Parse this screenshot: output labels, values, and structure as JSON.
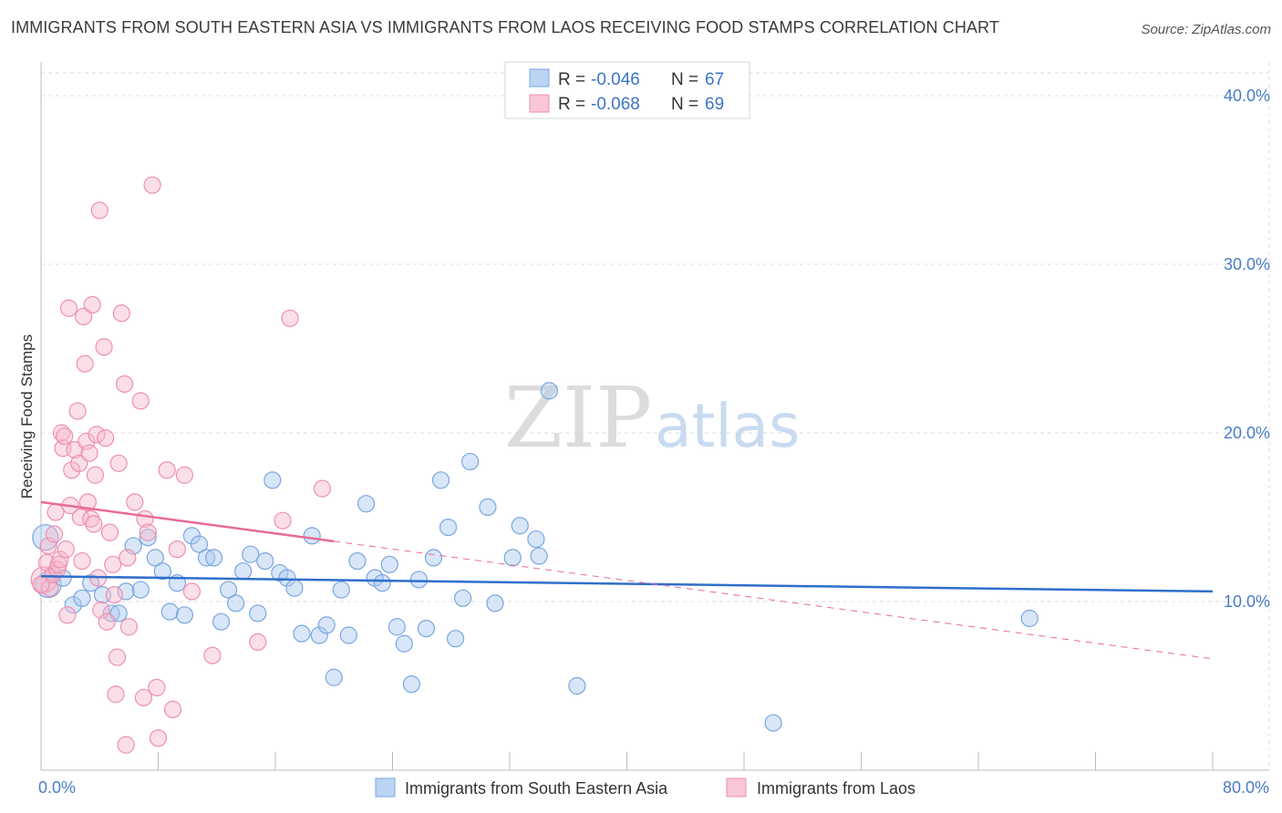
{
  "header": {
    "title": "IMMIGRANTS FROM SOUTH EASTERN ASIA VS IMMIGRANTS FROM LAOS RECEIVING FOOD STAMPS CORRELATION CHART",
    "source": "Source: ZipAtlas.com"
  },
  "watermark": {
    "zip": "ZIP",
    "atlas": "atlas"
  },
  "legend": {
    "series1": {
      "r_label": "R =",
      "r_value": "-0.046",
      "n_label": "N =",
      "n_value": "67"
    },
    "series2": {
      "r_label": "R =",
      "r_value": "-0.068",
      "n_label": "N =",
      "n_value": "69"
    }
  },
  "colors": {
    "blue_fill": "#a9c8f0",
    "blue_stroke": "#7aa6e0",
    "blue_line": "#2f6fcb",
    "pink_fill": "#f6b8cc",
    "pink_stroke": "#ee8fae",
    "pink_line": "#e86a98",
    "grid": "#dddddd",
    "axis_label": "#4a7cc7"
  },
  "chart_data": {
    "type": "scatter",
    "title": "IMMIGRANTS FROM SOUTH EASTERN ASIA VS IMMIGRANTS FROM LAOS RECEIVING FOOD STAMPS CORRELATION CHART",
    "xlabel": "",
    "ylabel": "Receiving Food Stamps",
    "xlim": [
      0,
      80
    ],
    "ylim": [
      0,
      42
    ],
    "x_tick_labels": [
      "0.0%",
      "80.0%"
    ],
    "y_ticks": [
      10,
      20,
      30,
      40
    ],
    "y_tick_labels": [
      "10.0%",
      "20.0%",
      "30.0%",
      "40.0%"
    ],
    "grid": true,
    "legend_position": "top-center",
    "series": [
      {
        "name": "Immigrants from South Eastern Asia",
        "color": "#a9c8f0",
        "r": -0.046,
        "n": 67,
        "trend": {
          "x0": 0,
          "y0": 11.5,
          "x1": 80,
          "y1": 10.6,
          "dashed_from": null
        },
        "points": [
          [
            0.3,
            13.8
          ],
          [
            0.5,
            11.0
          ],
          [
            0.8,
            11.6
          ],
          [
            1.5,
            11.4
          ],
          [
            2.2,
            9.8
          ],
          [
            2.8,
            10.2
          ],
          [
            3.4,
            11.1
          ],
          [
            4.2,
            10.4
          ],
          [
            4.8,
            9.3
          ],
          [
            5.3,
            9.3
          ],
          [
            5.8,
            10.6
          ],
          [
            6.3,
            13.3
          ],
          [
            6.8,
            10.7
          ],
          [
            7.3,
            13.8
          ],
          [
            7.8,
            12.6
          ],
          [
            8.3,
            11.8
          ],
          [
            8.8,
            9.4
          ],
          [
            9.3,
            11.1
          ],
          [
            9.8,
            9.2
          ],
          [
            10.3,
            13.9
          ],
          [
            10.8,
            13.4
          ],
          [
            11.3,
            12.6
          ],
          [
            11.8,
            12.6
          ],
          [
            12.3,
            8.8
          ],
          [
            12.8,
            10.7
          ],
          [
            13.3,
            9.9
          ],
          [
            13.8,
            11.8
          ],
          [
            14.3,
            12.8
          ],
          [
            14.8,
            9.3
          ],
          [
            15.3,
            12.4
          ],
          [
            15.8,
            17.2
          ],
          [
            16.3,
            11.7
          ],
          [
            16.8,
            11.4
          ],
          [
            17.3,
            10.8
          ],
          [
            17.8,
            8.1
          ],
          [
            18.5,
            13.9
          ],
          [
            19.0,
            8.0
          ],
          [
            19.5,
            8.6
          ],
          [
            20.0,
            5.5
          ],
          [
            20.5,
            10.7
          ],
          [
            21.0,
            8.0
          ],
          [
            21.6,
            12.4
          ],
          [
            22.2,
            15.8
          ],
          [
            22.8,
            11.4
          ],
          [
            23.3,
            11.1
          ],
          [
            23.8,
            12.2
          ],
          [
            24.3,
            8.5
          ],
          [
            24.8,
            7.5
          ],
          [
            25.3,
            5.1
          ],
          [
            25.8,
            11.3
          ],
          [
            26.3,
            8.4
          ],
          [
            26.8,
            12.6
          ],
          [
            27.3,
            17.2
          ],
          [
            27.8,
            14.4
          ],
          [
            28.3,
            7.8
          ],
          [
            28.8,
            10.2
          ],
          [
            29.3,
            18.3
          ],
          [
            30.5,
            15.6
          ],
          [
            31.0,
            9.9
          ],
          [
            32.2,
            12.6
          ],
          [
            32.7,
            14.5
          ],
          [
            33.8,
            13.7
          ],
          [
            34.0,
            12.7
          ],
          [
            34.7,
            22.5
          ],
          [
            36.6,
            5.0
          ],
          [
            50.0,
            2.8
          ],
          [
            67.5,
            9.0
          ]
        ]
      },
      {
        "name": "Immigrants from Laos",
        "color": "#f6b8cc",
        "r": -0.068,
        "n": 69,
        "trend": {
          "x0": 0,
          "y0": 15.9,
          "x1": 80,
          "y1": 6.6,
          "dashed_from": 20
        },
        "points": [
          [
            0.2,
            11.3
          ],
          [
            0.4,
            12.3
          ],
          [
            0.5,
            13.3
          ],
          [
            0.6,
            10.8
          ],
          [
            0.8,
            11.6
          ],
          [
            0.9,
            14.0
          ],
          [
            1.0,
            15.3
          ],
          [
            1.1,
            11.9
          ],
          [
            1.2,
            12.2
          ],
          [
            1.3,
            12.5
          ],
          [
            1.4,
            20.0
          ],
          [
            1.5,
            19.1
          ],
          [
            1.6,
            19.8
          ],
          [
            1.7,
            13.1
          ],
          [
            1.8,
            9.2
          ],
          [
            1.9,
            27.4
          ],
          [
            2.0,
            15.7
          ],
          [
            2.1,
            17.8
          ],
          [
            2.3,
            19.0
          ],
          [
            2.5,
            21.3
          ],
          [
            2.6,
            18.2
          ],
          [
            2.7,
            15.0
          ],
          [
            2.8,
            12.4
          ],
          [
            2.9,
            26.9
          ],
          [
            3.0,
            24.1
          ],
          [
            3.1,
            19.5
          ],
          [
            3.2,
            15.9
          ],
          [
            3.3,
            18.8
          ],
          [
            3.4,
            14.9
          ],
          [
            3.5,
            27.6
          ],
          [
            3.6,
            14.6
          ],
          [
            3.7,
            17.5
          ],
          [
            3.8,
            19.9
          ],
          [
            3.9,
            11.4
          ],
          [
            4.0,
            33.2
          ],
          [
            4.1,
            9.5
          ],
          [
            4.3,
            25.1
          ],
          [
            4.4,
            19.7
          ],
          [
            4.5,
            8.8
          ],
          [
            4.7,
            14.1
          ],
          [
            4.9,
            12.2
          ],
          [
            5.0,
            10.4
          ],
          [
            5.1,
            4.5
          ],
          [
            5.2,
            6.7
          ],
          [
            5.3,
            18.2
          ],
          [
            5.5,
            27.1
          ],
          [
            5.7,
            22.9
          ],
          [
            5.8,
            1.5
          ],
          [
            5.9,
            12.6
          ],
          [
            6.0,
            8.5
          ],
          [
            6.4,
            15.9
          ],
          [
            6.8,
            21.9
          ],
          [
            7.0,
            4.3
          ],
          [
            7.1,
            14.9
          ],
          [
            7.3,
            14.1
          ],
          [
            7.6,
            34.7
          ],
          [
            7.9,
            4.9
          ],
          [
            8.0,
            1.9
          ],
          [
            8.6,
            17.8
          ],
          [
            9.0,
            3.6
          ],
          [
            9.3,
            13.1
          ],
          [
            9.8,
            17.5
          ],
          [
            10.3,
            10.6
          ],
          [
            11.7,
            6.8
          ],
          [
            14.8,
            7.6
          ],
          [
            16.5,
            14.8
          ],
          [
            17.0,
            26.8
          ],
          [
            19.2,
            16.7
          ],
          [
            0.0,
            11.0
          ]
        ]
      }
    ]
  },
  "bottom_legend": {
    "series1_label": "Immigrants from South Eastern Asia",
    "series2_label": "Immigrants from Laos"
  }
}
